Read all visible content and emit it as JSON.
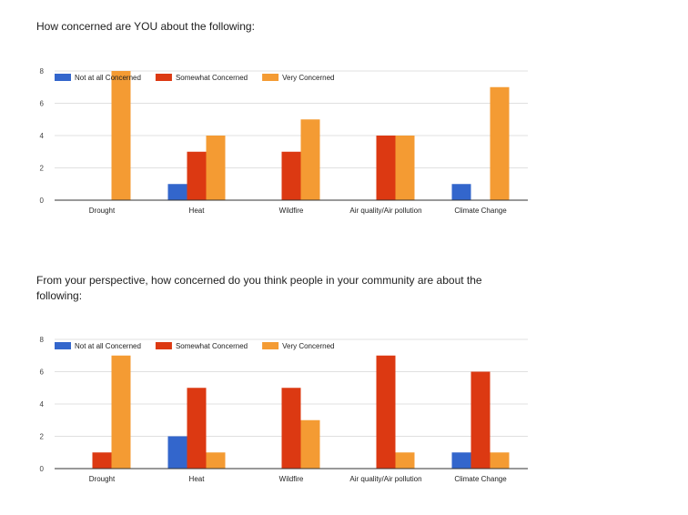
{
  "questions": {
    "q1": "How concerned are YOU about the following:",
    "q2": "From your perspective, how concerned do you think people in your community are about the following:"
  },
  "colors": {
    "not_at_all": "#3366cc",
    "somewhat": "#dc3912",
    "very": "#f49b33",
    "grid": "#e0e0e0",
    "axis": "#333333"
  },
  "chart_data": [
    {
      "type": "bar",
      "title": "How concerned are YOU about the following:",
      "categories": [
        "Drought",
        "Heat",
        "Wildfire",
        "Air quality/Air pollution",
        "Climate Change"
      ],
      "series": [
        {
          "name": "Not at all Concerned",
          "values": [
            0,
            1,
            0,
            0,
            1
          ]
        },
        {
          "name": "Somewhat Concerned",
          "values": [
            0,
            3,
            3,
            4,
            0
          ]
        },
        {
          "name": "Very Concerned",
          "values": [
            8,
            4,
            5,
            4,
            7
          ]
        }
      ],
      "yticks": [
        0,
        2,
        4,
        6,
        8
      ],
      "ylim": [
        0,
        8
      ],
      "xlabel": "",
      "ylabel": "",
      "grid": true,
      "legend": "top-left"
    },
    {
      "type": "bar",
      "title": "From your perspective, how concerned do you think people in your community are about the following:",
      "categories": [
        "Drought",
        "Heat",
        "Wildfire",
        "Air quality/Air pollution",
        "Climate Change"
      ],
      "series": [
        {
          "name": "Not at all Concerned",
          "values": [
            0,
            2,
            0,
            0,
            1
          ]
        },
        {
          "name": "Somewhat Concerned",
          "values": [
            1,
            5,
            5,
            7,
            6
          ]
        },
        {
          "name": "Very Concerned",
          "values": [
            7,
            1,
            3,
            1,
            1
          ]
        }
      ],
      "yticks": [
        0,
        2,
        4,
        6,
        8
      ],
      "ylim": [
        0,
        8
      ],
      "xlabel": "",
      "ylabel": "",
      "grid": true,
      "legend": "top-left"
    }
  ]
}
